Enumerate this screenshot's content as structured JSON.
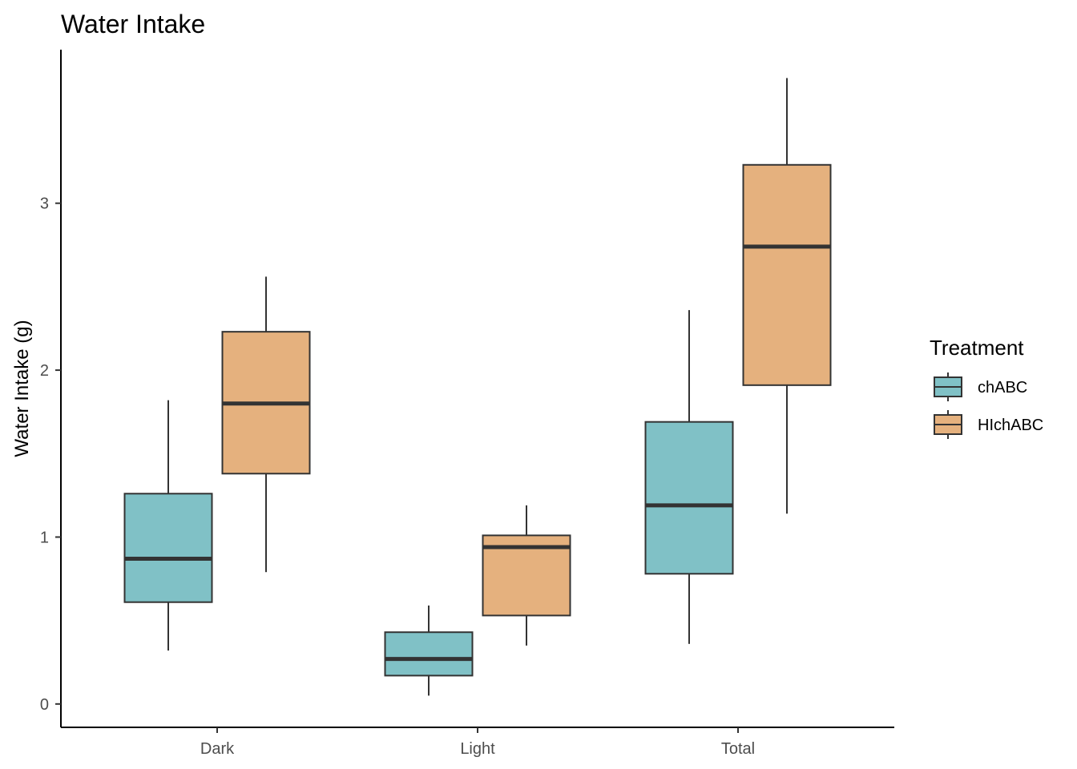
{
  "chart_data": {
    "type": "boxplot",
    "title": "Water Intake",
    "xlabel": "",
    "ylabel": "Water Intake (g)",
    "categories": [
      "Dark",
      "Light",
      "Total"
    ],
    "y_ticks": [
      "0",
      "1",
      "2",
      "3"
    ],
    "ylim": [
      -0.14,
      3.92
    ],
    "grid": false,
    "legend": {
      "title": "Treatment",
      "placement": "right"
    },
    "series": [
      {
        "name": "chABC",
        "color": "#80c1c6",
        "boxes": [
          {
            "category": "Dark",
            "min": 0.32,
            "q1": 0.61,
            "median": 0.87,
            "q3": 1.26,
            "max": 1.82
          },
          {
            "category": "Light",
            "min": 0.05,
            "q1": 0.17,
            "median": 0.27,
            "q3": 0.43,
            "max": 0.59
          },
          {
            "category": "Total",
            "min": 0.36,
            "q1": 0.78,
            "median": 1.19,
            "q3": 1.69,
            "max": 2.36
          }
        ]
      },
      {
        "name": "HIchABC",
        "color": "#e5b17e",
        "boxes": [
          {
            "category": "Dark",
            "min": 0.79,
            "q1": 1.38,
            "median": 1.8,
            "q3": 2.23,
            "max": 2.56
          },
          {
            "category": "Light",
            "min": 0.35,
            "q1": 0.53,
            "median": 0.94,
            "q3": 1.01,
            "max": 1.19
          },
          {
            "category": "Total",
            "min": 1.14,
            "q1": 1.91,
            "median": 2.74,
            "q3": 3.23,
            "max": 3.75
          }
        ]
      }
    ]
  }
}
